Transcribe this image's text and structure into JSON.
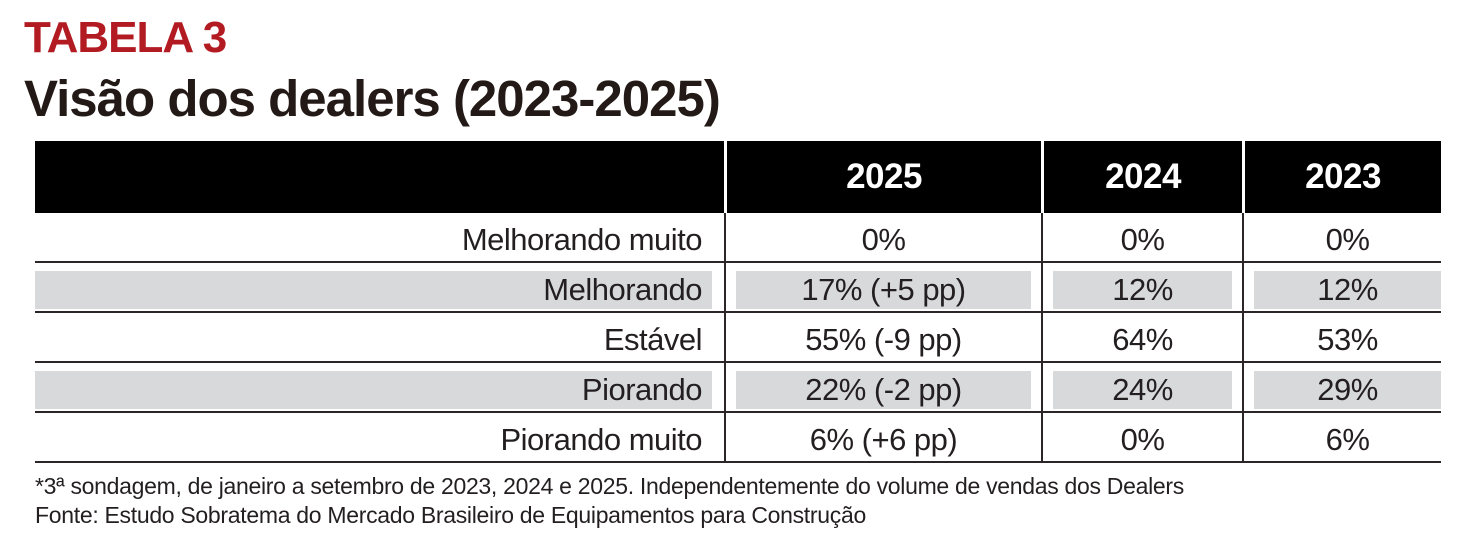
{
  "page": {
    "tag": "TABELA 3",
    "title": "Visão dos dealers (2023-2025)"
  },
  "table": {
    "columns": [
      "2025",
      "2024",
      "2023"
    ],
    "rows": [
      {
        "label": "Melhorando muito",
        "values": [
          "0%",
          "0%",
          "0%"
        ],
        "highlight": false
      },
      {
        "label": "Melhorando",
        "values": [
          "17% (+5 pp)",
          "12%",
          "12%"
        ],
        "highlight": true
      },
      {
        "label": "Estável",
        "values": [
          "55% (-9 pp)",
          "64%",
          "53%"
        ],
        "highlight": false
      },
      {
        "label": "Piorando",
        "values": [
          "22% (-2 pp)",
          "24%",
          "29%"
        ],
        "highlight": true
      },
      {
        "label": "Piorando muito",
        "values": [
          "6% (+6 pp)",
          "0%",
          "6%"
        ],
        "highlight": false
      }
    ]
  },
  "footnotes": [
    "*3ª sondagem, de janeiro a setembro de 2023, 2024 e 2025. Independentemente do volume de vendas dos Dealers",
    "Fonte: Estudo Sobratema do Mercado Brasileiro de Equipamentos para Construção"
  ],
  "colors": {
    "accent_red": "#B31B22",
    "text_dark": "#231F20",
    "header_bg": "#000000",
    "header_text": "#FFFFFF",
    "row_highlight": "#D8D9DB",
    "grid_line": "#2B2527"
  },
  "chart_data": {
    "type": "table",
    "title": "Visão dos dealers (2023-2025)",
    "tag": "TABELA 3",
    "columns": [
      "2025",
      "2024",
      "2023"
    ],
    "row_labels": [
      "Melhorando muito",
      "Melhorando",
      "Estável",
      "Piorando",
      "Piorando muito"
    ],
    "cells": [
      [
        "0%",
        "0%",
        "0%"
      ],
      [
        "17% (+5 pp)",
        "12%",
        "12%"
      ],
      [
        "55% (-9 pp)",
        "64%",
        "53%"
      ],
      [
        "22% (-2 pp)",
        "24%",
        "29%"
      ],
      [
        "6% (+6 pp)",
        "0%",
        "6%"
      ]
    ],
    "percent_values": {
      "2025": [
        0,
        17,
        55,
        22,
        6
      ],
      "2024": [
        0,
        12,
        64,
        24,
        0
      ],
      "2023": [
        0,
        12,
        53,
        29,
        6
      ]
    },
    "change_pp_2025": [
      null,
      5,
      -9,
      -2,
      6
    ],
    "footnotes": [
      "*3ª sondagem, de janeiro a setembro de 2023, 2024 e 2025. Independentemente do volume de vendas dos Dealers",
      "Fonte: Estudo Sobratema do Mercado Brasileiro de Equipamentos para Construção"
    ]
  }
}
